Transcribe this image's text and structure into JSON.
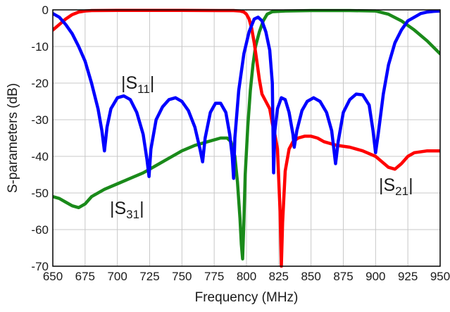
{
  "chart_data": {
    "type": "line",
    "xlabel": "Frequency (MHz)",
    "ylabel": "S-parameters (dB)",
    "xlim": [
      650,
      950
    ],
    "ylim": [
      -70,
      0
    ],
    "x_ticks": [
      "650",
      "675",
      "700",
      "725",
      "750",
      "775",
      "800",
      "825",
      "850",
      "875",
      "900",
      "925",
      "950"
    ],
    "y_ticks": [
      "0",
      "-10",
      "-20",
      "-30",
      "-40",
      "-50",
      "-60",
      "-70"
    ],
    "grid": true,
    "series": [
      {
        "name": "|S11|",
        "label_main": "|S",
        "label_sub": "11",
        "label_end": "|",
        "color": "#0000ff",
        "points": [
          [
            650,
            -1
          ],
          [
            655,
            -2
          ],
          [
            660,
            -4
          ],
          [
            665,
            -6.5
          ],
          [
            670,
            -10
          ],
          [
            675,
            -14
          ],
          [
            680,
            -20
          ],
          [
            685,
            -27
          ],
          [
            688,
            -33
          ],
          [
            690,
            -38.5
          ],
          [
            692,
            -32
          ],
          [
            695,
            -27
          ],
          [
            700,
            -24
          ],
          [
            705,
            -23.5
          ],
          [
            710,
            -24.5
          ],
          [
            715,
            -28
          ],
          [
            720,
            -34
          ],
          [
            723,
            -41
          ],
          [
            724.5,
            -45.5
          ],
          [
            726,
            -38
          ],
          [
            730,
            -30
          ],
          [
            735,
            -26.5
          ],
          [
            740,
            -24.5
          ],
          [
            745,
            -24
          ],
          [
            750,
            -25
          ],
          [
            755,
            -27.5
          ],
          [
            760,
            -32
          ],
          [
            764,
            -38
          ],
          [
            766,
            -41.5
          ],
          [
            768,
            -35
          ],
          [
            772,
            -28
          ],
          [
            776,
            -25.5
          ],
          [
            780,
            -25.5
          ],
          [
            784,
            -28
          ],
          [
            787,
            -34
          ],
          [
            789,
            -40
          ],
          [
            790,
            -46
          ],
          [
            791,
            -35
          ],
          [
            794,
            -22
          ],
          [
            798,
            -12
          ],
          [
            802,
            -6
          ],
          [
            806,
            -2.5
          ],
          [
            809,
            -2
          ],
          [
            812,
            -3
          ],
          [
            815,
            -6
          ],
          [
            818,
            -11
          ],
          [
            820,
            -20
          ],
          [
            821,
            -44.5
          ],
          [
            822,
            -33
          ],
          [
            824,
            -27
          ],
          [
            827,
            -24
          ],
          [
            830,
            -24.5
          ],
          [
            833,
            -28
          ],
          [
            836,
            -34
          ],
          [
            837,
            -37.5
          ],
          [
            839,
            -33
          ],
          [
            843,
            -27.5
          ],
          [
            847,
            -25
          ],
          [
            852,
            -24
          ],
          [
            857,
            -25
          ],
          [
            862,
            -28
          ],
          [
            866,
            -33
          ],
          [
            869,
            -42
          ],
          [
            871,
            -36
          ],
          [
            875,
            -28
          ],
          [
            880,
            -24.5
          ],
          [
            885,
            -23
          ],
          [
            890,
            -23.2
          ],
          [
            895,
            -26
          ],
          [
            898,
            -33
          ],
          [
            900,
            -39
          ],
          [
            902,
            -34
          ],
          [
            906,
            -23
          ],
          [
            910,
            -15
          ],
          [
            915,
            -9
          ],
          [
            920,
            -5.5
          ],
          [
            925,
            -3
          ],
          [
            930,
            -2
          ],
          [
            935,
            -1
          ],
          [
            940,
            -0.6
          ],
          [
            945,
            -0.4
          ],
          [
            950,
            -0.3
          ]
        ]
      },
      {
        "name": "|S21|",
        "label_main": "|S",
        "label_sub": "21",
        "label_end": "|",
        "color": "#ff0000",
        "points": [
          [
            650,
            -5.5
          ],
          [
            655,
            -4
          ],
          [
            660,
            -2.5
          ],
          [
            665,
            -1.3
          ],
          [
            670,
            -0.6
          ],
          [
            675,
            -0.3
          ],
          [
            680,
            -0.2
          ],
          [
            700,
            -0.15
          ],
          [
            750,
            -0.15
          ],
          [
            780,
            -0.2
          ],
          [
            790,
            -0.2
          ],
          [
            795,
            -0.3
          ],
          [
            798,
            -0.6
          ],
          [
            800,
            -1.2
          ],
          [
            802,
            -2.5
          ],
          [
            804,
            -5
          ],
          [
            806,
            -9
          ],
          [
            808,
            -14
          ],
          [
            810,
            -19
          ],
          [
            812,
            -23
          ],
          [
            815,
            -25
          ],
          [
            818,
            -27
          ],
          [
            820,
            -31
          ],
          [
            822,
            -34
          ],
          [
            824,
            -38
          ],
          [
            826,
            -55
          ],
          [
            827,
            -70
          ],
          [
            828,
            -58
          ],
          [
            830,
            -44
          ],
          [
            833,
            -38
          ],
          [
            836,
            -36
          ],
          [
            840,
            -35
          ],
          [
            845,
            -34.5
          ],
          [
            850,
            -34.5
          ],
          [
            855,
            -35
          ],
          [
            860,
            -36
          ],
          [
            870,
            -37
          ],
          [
            880,
            -37.5
          ],
          [
            890,
            -38.5
          ],
          [
            900,
            -40
          ],
          [
            905,
            -41.5
          ],
          [
            910,
            -43
          ],
          [
            915,
            -43.5
          ],
          [
            920,
            -42
          ],
          [
            925,
            -40
          ],
          [
            930,
            -39
          ],
          [
            940,
            -38.5
          ],
          [
            950,
            -38.5
          ]
        ]
      },
      {
        "name": "|S31|",
        "label_main": "|S",
        "label_sub": "31",
        "label_end": "|",
        "color": "#1a8a1a",
        "points": [
          [
            650,
            -51
          ],
          [
            655,
            -51.5
          ],
          [
            660,
            -52.5
          ],
          [
            665,
            -53.5
          ],
          [
            670,
            -54
          ],
          [
            675,
            -53
          ],
          [
            680,
            -51
          ],
          [
            690,
            -49
          ],
          [
            700,
            -47.5
          ],
          [
            710,
            -46
          ],
          [
            720,
            -44.5
          ],
          [
            730,
            -42.5
          ],
          [
            740,
            -40.5
          ],
          [
            750,
            -38.5
          ],
          [
            760,
            -37
          ],
          [
            770,
            -36
          ],
          [
            780,
            -35
          ],
          [
            785,
            -35
          ],
          [
            788,
            -36
          ],
          [
            791,
            -40
          ],
          [
            793,
            -47
          ],
          [
            795,
            -57
          ],
          [
            796,
            -64
          ],
          [
            797,
            -68
          ],
          [
            798,
            -58
          ],
          [
            799,
            -45
          ],
          [
            801,
            -32
          ],
          [
            803,
            -22
          ],
          [
            805,
            -15
          ],
          [
            807,
            -10
          ],
          [
            810,
            -6
          ],
          [
            813,
            -3
          ],
          [
            816,
            -1.2
          ],
          [
            820,
            -0.5
          ],
          [
            830,
            -0.3
          ],
          [
            850,
            -0.2
          ],
          [
            880,
            -0.2
          ],
          [
            900,
            -0.3
          ],
          [
            910,
            -1.2
          ],
          [
            920,
            -3
          ],
          [
            930,
            -5.5
          ],
          [
            940,
            -8.5
          ],
          [
            950,
            -12
          ]
        ]
      }
    ]
  }
}
